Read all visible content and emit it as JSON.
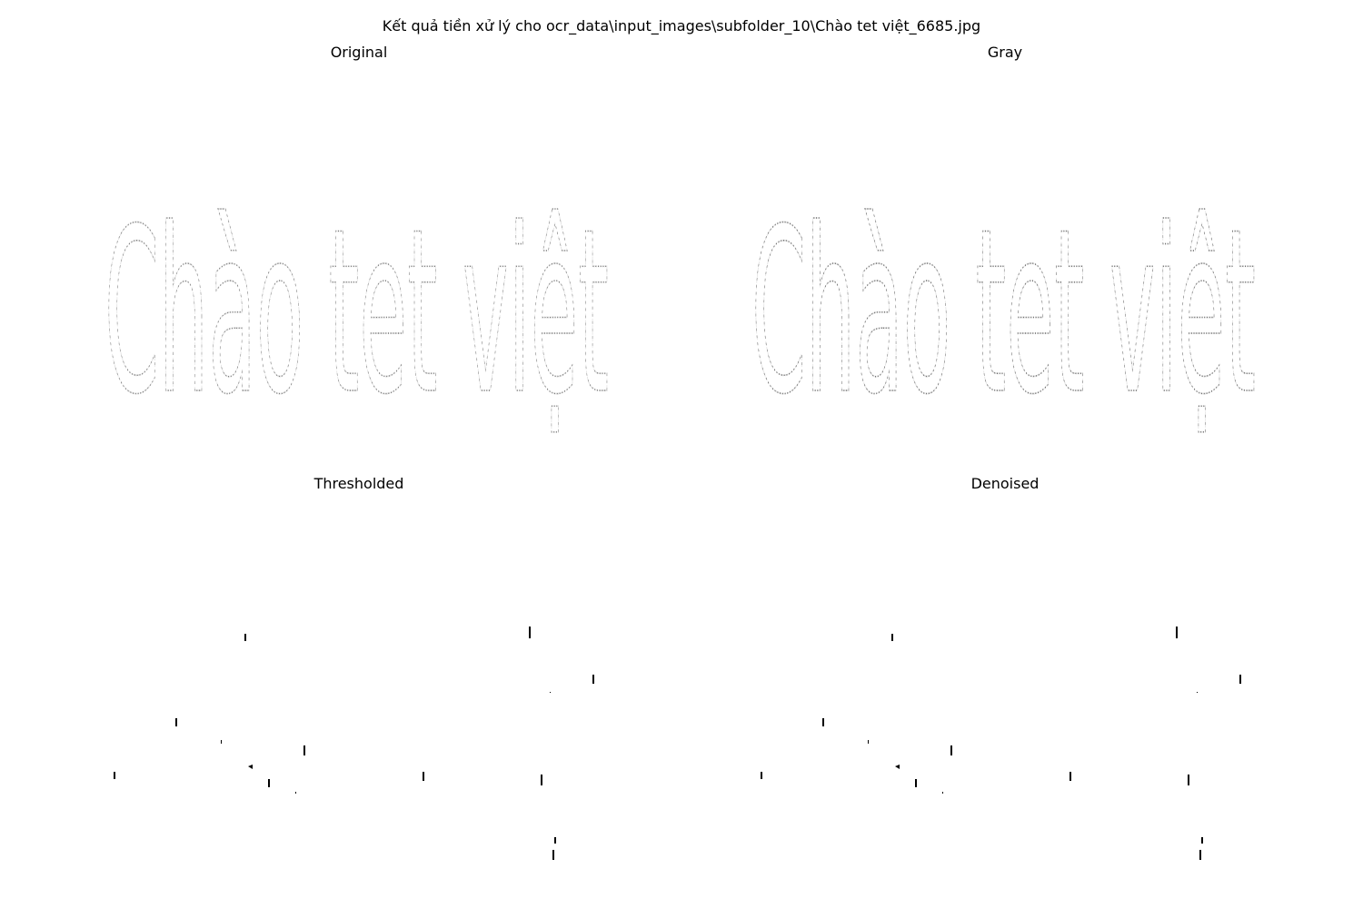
{
  "figure": {
    "suptitle": "Kết quả tiền xử lý cho ocr_data\\input_images\\subfolder_10\\Chào tet việt_6685.jpg"
  },
  "panels": {
    "original": {
      "title": "Original",
      "text": "Chào tet việt"
    },
    "gray": {
      "title": "Gray",
      "text": "Chào tet việt"
    },
    "thresholded": {
      "title": "Thresholded"
    },
    "denoised": {
      "title": "Denoised"
    }
  },
  "colors": {
    "background": "#ffffff",
    "ink": "#000000",
    "stroke_gray": "#8a8a8a",
    "stroke_dark": "#2a2a2a",
    "ghost": "#dddddd"
  }
}
